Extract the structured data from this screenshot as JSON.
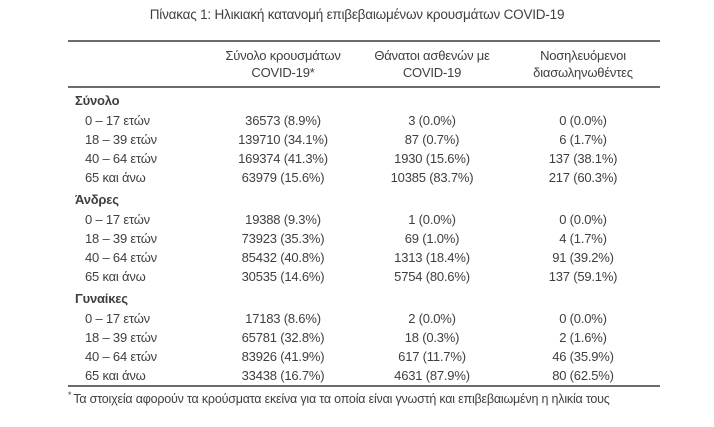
{
  "title": "Πίνακας 1: Ηλικιακή κατανομή επιβεβαιωμένων κρουσμάτων COVID-19",
  "header": {
    "cases": {
      "line1": "Σύνολο κρουσμάτων",
      "line2": "COVID-19*"
    },
    "deaths": {
      "line1": "Θάνατοι ασθενών με",
      "line2": "COVID-19"
    },
    "intubated": {
      "line1": "Νοσηλευόμενοι",
      "line2": "διασωληνωθέντες"
    }
  },
  "sections": [
    {
      "label": "Σύνολο",
      "rows": [
        {
          "age": "0 – 17 ετών",
          "cases": "36573 (8.9%)",
          "deaths": "3 (0.0%)",
          "intubated": "0 (0.0%)"
        },
        {
          "age": "18 – 39 ετών",
          "cases": "139710 (34.1%)",
          "deaths": "87 (0.7%)",
          "intubated": "6 (1.7%)"
        },
        {
          "age": "40 – 64 ετών",
          "cases": "169374 (41.3%)",
          "deaths": "1930 (15.6%)",
          "intubated": "137 (38.1%)"
        },
        {
          "age": "65 και άνω",
          "cases": "63979 (15.6%)",
          "deaths": "10385 (83.7%)",
          "intubated": "217 (60.3%)"
        }
      ]
    },
    {
      "label": "Άνδρες",
      "rows": [
        {
          "age": "0 – 17 ετών",
          "cases": "19388 (9.3%)",
          "deaths": "1 (0.0%)",
          "intubated": "0 (0.0%)"
        },
        {
          "age": "18 – 39 ετών",
          "cases": "73923 (35.3%)",
          "deaths": "69 (1.0%)",
          "intubated": "4 (1.7%)"
        },
        {
          "age": "40 – 64 ετών",
          "cases": "85432 (40.8%)",
          "deaths": "1313 (18.4%)",
          "intubated": "91 (39.2%)"
        },
        {
          "age": "65 και άνω",
          "cases": "30535 (14.6%)",
          "deaths": "5754 (80.6%)",
          "intubated": "137 (59.1%)"
        }
      ]
    },
    {
      "label": "Γυναίκες",
      "rows": [
        {
          "age": "0 – 17 ετών",
          "cases": "17183 (8.6%)",
          "deaths": "2 (0.0%)",
          "intubated": "0 (0.0%)"
        },
        {
          "age": "18 – 39 ετών",
          "cases": "65781 (32.8%)",
          "deaths": "18 (0.3%)",
          "intubated": "2 (1.6%)"
        },
        {
          "age": "40 – 64 ετών",
          "cases": "83926 (41.9%)",
          "deaths": "617 (11.7%)",
          "intubated": "46 (35.9%)"
        },
        {
          "age": "65 και άνω",
          "cases": "33438 (16.7%)",
          "deaths": "4631 (87.9%)",
          "intubated": "80 (62.5%)"
        }
      ]
    }
  ],
  "footnote": {
    "marker": "*",
    "text": "Τα στοιχεία αφορούν τα κρούσματα εκείνα για τα οποία είναι γνωστή και επιβεβαιωμένη η ηλικία τους"
  }
}
